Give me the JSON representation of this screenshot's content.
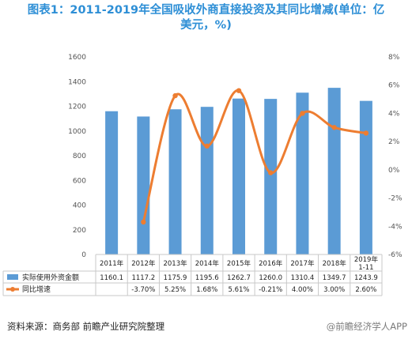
{
  "chart_data": {
    "type": "bar+line",
    "title": "图表1：2011-2019年全国吸收外商直接投资及其同比增减(单位：亿美元，%)",
    "title_lines": [
      "图表1：2011-2019年全国吸收外商直接投资及其同比增减(单位：亿",
      "美元，%)"
    ],
    "categories": [
      "2011年",
      "2012年",
      "2013年",
      "2014年",
      "2015年",
      "2016年",
      "2017年",
      "2018年",
      "2019年\n1-11"
    ],
    "series": [
      {
        "name": "实际使用外资金额",
        "kind": "bar",
        "axis": "left",
        "color": "#5b9bd5",
        "values": [
          1160.1,
          1117.2,
          1175.9,
          1195.6,
          1262.7,
          1260.0,
          1310.4,
          1349.7,
          1243.9
        ],
        "labels": [
          "1160.1",
          "1117.2",
          "1175.9",
          "1195.6",
          "1262.7",
          "1260.0",
          "1310.4",
          "1349.7",
          "1243.9"
        ]
      },
      {
        "name": "同比增速",
        "kind": "line",
        "axis": "right",
        "color": "#ed7d31",
        "values": [
          null,
          -3.7,
          5.25,
          1.68,
          5.61,
          -0.21,
          4.0,
          3.0,
          2.6
        ],
        "labels": [
          "",
          "-3.70%",
          "5.25%",
          "1.68%",
          "5.61%",
          "-0.21%",
          "4.00%",
          "3.00%",
          "2.60%"
        ]
      }
    ],
    "y_left": {
      "range": [
        0,
        1600
      ],
      "ticks": [
        "0",
        "200",
        "400",
        "600",
        "800",
        "1000",
        "1200",
        "1400",
        "1600"
      ]
    },
    "y_right": {
      "range": [
        -6,
        8
      ],
      "ticks": [
        "-6%",
        "-4%",
        "-2%",
        "0%",
        "2%",
        "4%",
        "6%",
        "8%"
      ]
    },
    "grid": false,
    "legend": "data-table",
    "source": "资料来源：商务部 前瞻产业研究院整理",
    "brand": "@前瞻经济学人APP"
  }
}
